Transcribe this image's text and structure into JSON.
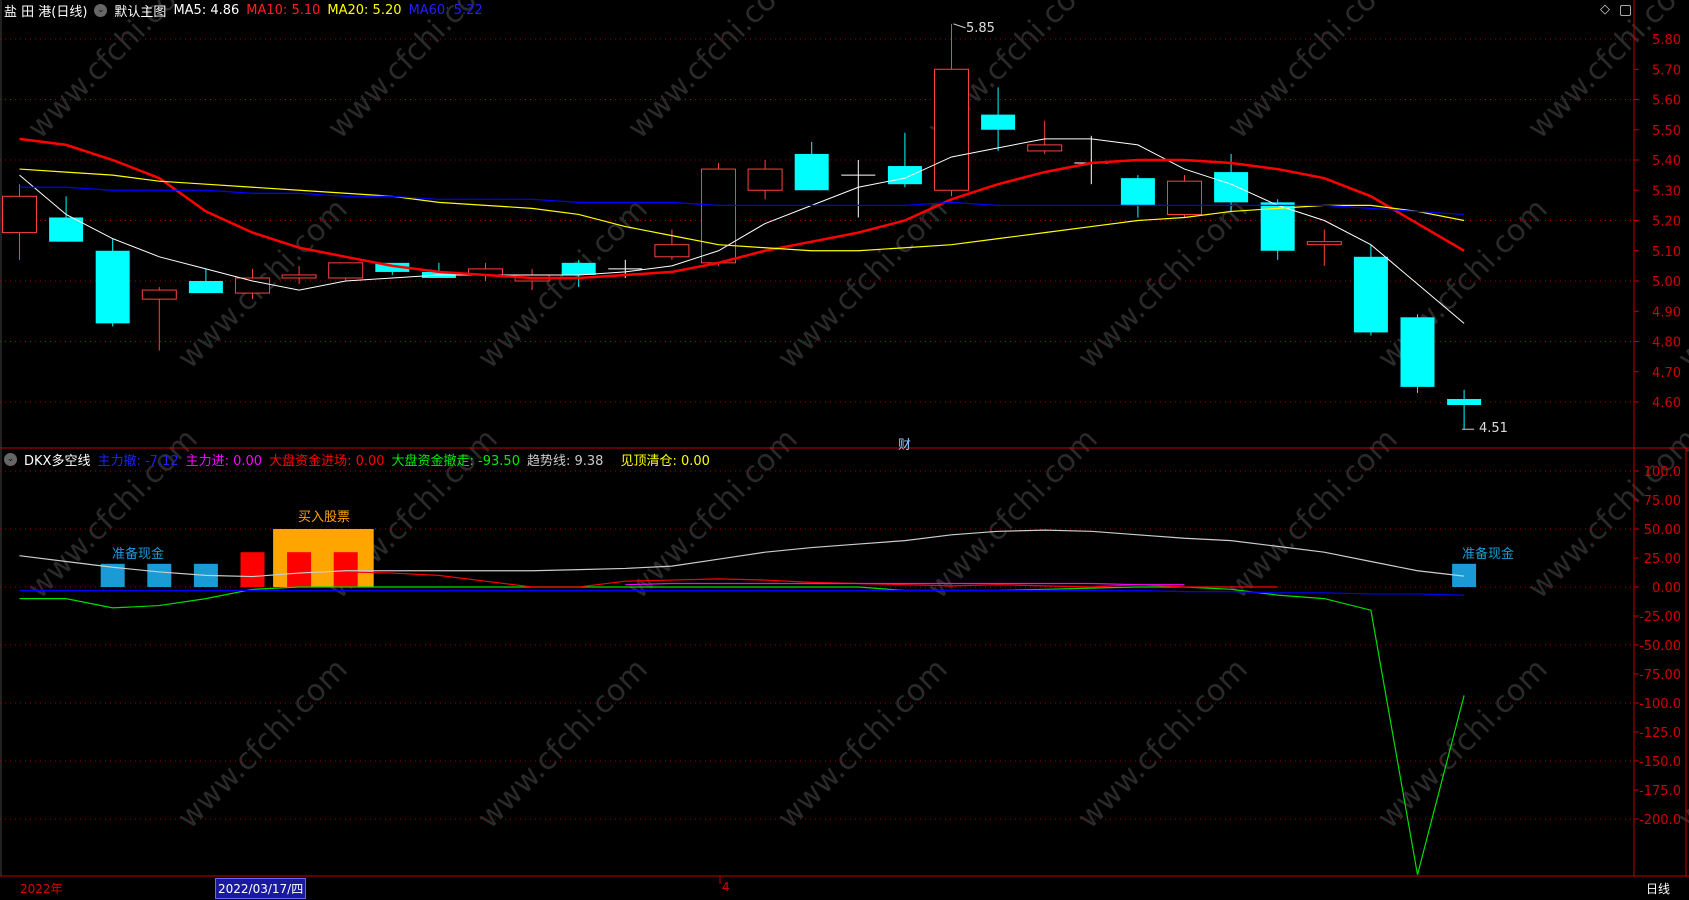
{
  "header": {
    "stock_title": "盐 田 港(日线)",
    "template_label": "默认主图",
    "ma5": "MA5: 4.86",
    "ma10": "MA10: 5.10",
    "ma20": "MA20: 5.20",
    "ma60": "MA60: 5.22"
  },
  "indicator_header": {
    "name": "DKX多空线",
    "main_out": "主力撤: -7.12",
    "main_in": "主力进: 0.00",
    "market_in": "大盘资金进场: 0.00",
    "market_out": "大盘资金撤走: -93.50",
    "trend": "趋势线: 9.38",
    "top_clear": "见顶清仓: 0.00"
  },
  "icons": [
    "chevron-down-icon",
    "diamond-icon",
    "panel-toggle-icon"
  ],
  "colors": {
    "up": "#ff4040",
    "down": "#00ffff",
    "ma5": "#ffffff",
    "ma10": "#ff0000",
    "ma20": "#ffff00",
    "ma60": "#0000ff",
    "axis": "#c00000",
    "buy": "#ffa500",
    "cash": "#1a9bd6"
  },
  "watermark": "www.cfchi.com",
  "footer": {
    "year": "2022年",
    "cursor_date": "2022/03/17/四",
    "month": "4",
    "period": "日线"
  },
  "chart_data": [
    {
      "type": "candlestick",
      "y_ticks": [
        "5.80",
        "5.70",
        "5.60",
        "5.50",
        "5.40",
        "5.30",
        "5.20",
        "5.10",
        "5.00",
        "4.90",
        "4.80",
        "4.70",
        "4.60"
      ],
      "ylim": [
        4.48,
        5.87
      ],
      "grid": true,
      "ohlc": [
        [
          5.16,
          5.32,
          5.07,
          5.28
        ],
        [
          5.21,
          5.28,
          5.13,
          5.13
        ],
        [
          5.1,
          5.14,
          4.85,
          4.86
        ],
        [
          4.94,
          4.98,
          4.77,
          4.97
        ],
        [
          5.0,
          5.04,
          4.96,
          4.96
        ],
        [
          4.96,
          5.04,
          4.94,
          5.01
        ],
        [
          5.01,
          5.05,
          4.99,
          5.02
        ],
        [
          5.01,
          5.06,
          5.0,
          5.06
        ],
        [
          5.06,
          5.06,
          5.02,
          5.03
        ],
        [
          5.03,
          5.06,
          5.01,
          5.01
        ],
        [
          5.02,
          5.06,
          5.0,
          5.04
        ],
        [
          5.0,
          5.04,
          4.97,
          5.02
        ],
        [
          5.06,
          5.07,
          4.98,
          5.02
        ],
        [
          5.04,
          5.07,
          5.01,
          5.04
        ],
        [
          5.08,
          5.17,
          5.07,
          5.12
        ],
        [
          5.06,
          5.39,
          5.05,
          5.37
        ],
        [
          5.3,
          5.4,
          5.27,
          5.37
        ],
        [
          5.42,
          5.46,
          5.3,
          5.3
        ],
        [
          5.35,
          5.4,
          5.21,
          5.35
        ],
        [
          5.38,
          5.49,
          5.31,
          5.32
        ],
        [
          5.3,
          5.85,
          5.28,
          5.7
        ],
        [
          5.55,
          5.64,
          5.43,
          5.5
        ],
        [
          5.43,
          5.53,
          5.42,
          5.45
        ],
        [
          5.39,
          5.48,
          5.32,
          5.39
        ],
        [
          5.34,
          5.35,
          5.21,
          5.25
        ],
        [
          5.22,
          5.35,
          5.21,
          5.33
        ],
        [
          5.36,
          5.42,
          5.23,
          5.26
        ],
        [
          5.26,
          5.27,
          5.07,
          5.1
        ],
        [
          5.12,
          5.17,
          5.05,
          5.13
        ],
        [
          5.08,
          5.12,
          4.82,
          4.83
        ],
        [
          4.88,
          4.89,
          4.63,
          4.65
        ],
        [
          4.61,
          4.64,
          4.51,
          4.59
        ]
      ],
      "ma": [
        {
          "name": "MA5",
          "values": [
            5.35,
            5.22,
            5.14,
            5.08,
            5.04,
            5.0,
            4.97,
            5.0,
            5.01,
            5.02,
            5.02,
            5.02,
            5.02,
            5.03,
            5.05,
            5.1,
            5.19,
            5.25,
            5.31,
            5.34,
            5.41,
            5.44,
            5.47,
            5.47,
            5.45,
            5.37,
            5.32,
            5.25,
            5.2,
            5.12,
            4.99,
            4.86
          ]
        },
        {
          "name": "MA10",
          "values": [
            5.47,
            5.45,
            5.4,
            5.34,
            5.23,
            5.16,
            5.11,
            5.08,
            5.05,
            5.03,
            5.02,
            5.01,
            5.01,
            5.02,
            5.03,
            5.06,
            5.1,
            5.13,
            5.16,
            5.2,
            5.27,
            5.32,
            5.36,
            5.39,
            5.4,
            5.4,
            5.39,
            5.37,
            5.34,
            5.28,
            5.19,
            5.1
          ]
        },
        {
          "name": "MA20",
          "values": [
            5.37,
            5.36,
            5.35,
            5.33,
            5.32,
            5.31,
            5.3,
            5.29,
            5.28,
            5.26,
            5.25,
            5.24,
            5.22,
            5.18,
            5.15,
            5.12,
            5.11,
            5.1,
            5.1,
            5.11,
            5.12,
            5.14,
            5.16,
            5.18,
            5.2,
            5.21,
            5.23,
            5.24,
            5.25,
            5.25,
            5.23,
            5.2
          ]
        },
        {
          "name": "MA60",
          "values": [
            5.31,
            5.31,
            5.3,
            5.3,
            5.3,
            5.29,
            5.29,
            5.28,
            5.28,
            5.27,
            5.27,
            5.27,
            5.26,
            5.26,
            5.26,
            5.25,
            5.25,
            5.25,
            5.25,
            5.25,
            5.26,
            5.25,
            5.25,
            5.25,
            5.25,
            5.25,
            5.25,
            5.25,
            5.25,
            5.24,
            5.23,
            5.22
          ]
        }
      ],
      "annotations": [
        {
          "text": "5.85",
          "index": 20,
          "price": 5.85
        },
        {
          "text": "4.51",
          "index": 31,
          "price": 4.51
        },
        {
          "text": "财",
          "index": 20
        }
      ]
    },
    {
      "type": "line",
      "title": "DKX多空线",
      "y_ticks": [
        "100.0",
        "75.00",
        "50.00",
        "25.00",
        "0.00",
        "-25.00",
        "-50.00",
        "-75.00",
        "-100.0",
        "-125.0",
        "-150.0",
        "-175.0",
        "-200.0"
      ],
      "ylim": [
        -250,
        120
      ],
      "grid": true,
      "series": [
        {
          "name": "趋势线",
          "color": "#cccccc",
          "values": [
            27,
            22,
            17,
            13,
            10,
            9,
            12,
            14,
            14,
            14,
            14,
            14,
            15,
            16,
            18,
            24,
            30,
            34,
            37,
            40,
            45,
            48,
            49,
            48,
            45,
            42,
            40,
            35,
            30,
            22,
            14,
            9.38
          ]
        },
        {
          "name": "大盘资金撤走",
          "color": "#00dd00",
          "values": [
            -10,
            -10,
            -18,
            -16,
            -10,
            -2,
            0,
            0,
            0,
            0,
            0,
            0,
            0,
            0,
            0,
            0,
            0,
            0,
            0,
            -3,
            -3,
            -3,
            -2,
            -1,
            0,
            0,
            -2,
            -7,
            -10,
            -20,
            -248,
            -93.5
          ]
        },
        {
          "name": "大盘资金进场",
          "color": "#ff0000",
          "values": [
            null,
            null,
            null,
            null,
            null,
            null,
            null,
            13,
            12,
            10,
            5,
            0,
            0,
            5,
            6,
            7,
            6,
            4,
            3,
            2,
            1,
            2,
            1,
            0,
            2,
            0,
            0,
            0,
            null,
            null,
            null,
            null
          ]
        },
        {
          "name": "主力进",
          "color": "#ff00ff",
          "values": [
            null,
            null,
            null,
            null,
            null,
            null,
            null,
            null,
            null,
            null,
            null,
            null,
            null,
            2,
            3,
            3,
            3,
            3,
            3,
            3,
            3,
            3,
            3,
            3,
            2,
            2,
            null,
            null,
            null,
            null,
            null,
            null
          ]
        },
        {
          "name": "主力撤",
          "color": "#0000ff",
          "values": [
            -3,
            -3,
            -3,
            -3,
            -3,
            -3,
            -3,
            -3,
            -3,
            -3,
            -3,
            -3,
            -3,
            -3,
            -3,
            -3,
            -3,
            -3,
            -3,
            -3,
            -3,
            -3,
            -3,
            -3,
            -3,
            -4,
            -4,
            -5,
            -5,
            -6,
            -6,
            -7.12
          ]
        }
      ],
      "bars": [
        {
          "index": 2,
          "value": 20,
          "color": "#1a9bd6"
        },
        {
          "index": 3,
          "value": 20,
          "color": "#1a9bd6"
        },
        {
          "index": 4,
          "value": 20,
          "color": "#1a9bd6"
        },
        {
          "index": 5,
          "value": 30,
          "color": "#ff0000"
        },
        {
          "index": 6,
          "value": 30,
          "color": "#ff0000"
        },
        {
          "index": 7,
          "value": 30,
          "color": "#ff0000"
        },
        {
          "index": 31,
          "value": 20,
          "color": "#1a9bd6"
        }
      ],
      "buy_zone": {
        "from": 6,
        "to": 7,
        "value": 50,
        "label": "买入股票"
      },
      "signals": [
        {
          "text": "准备现金",
          "index": 3
        },
        {
          "text": "准备现金",
          "index": 31
        }
      ]
    }
  ]
}
